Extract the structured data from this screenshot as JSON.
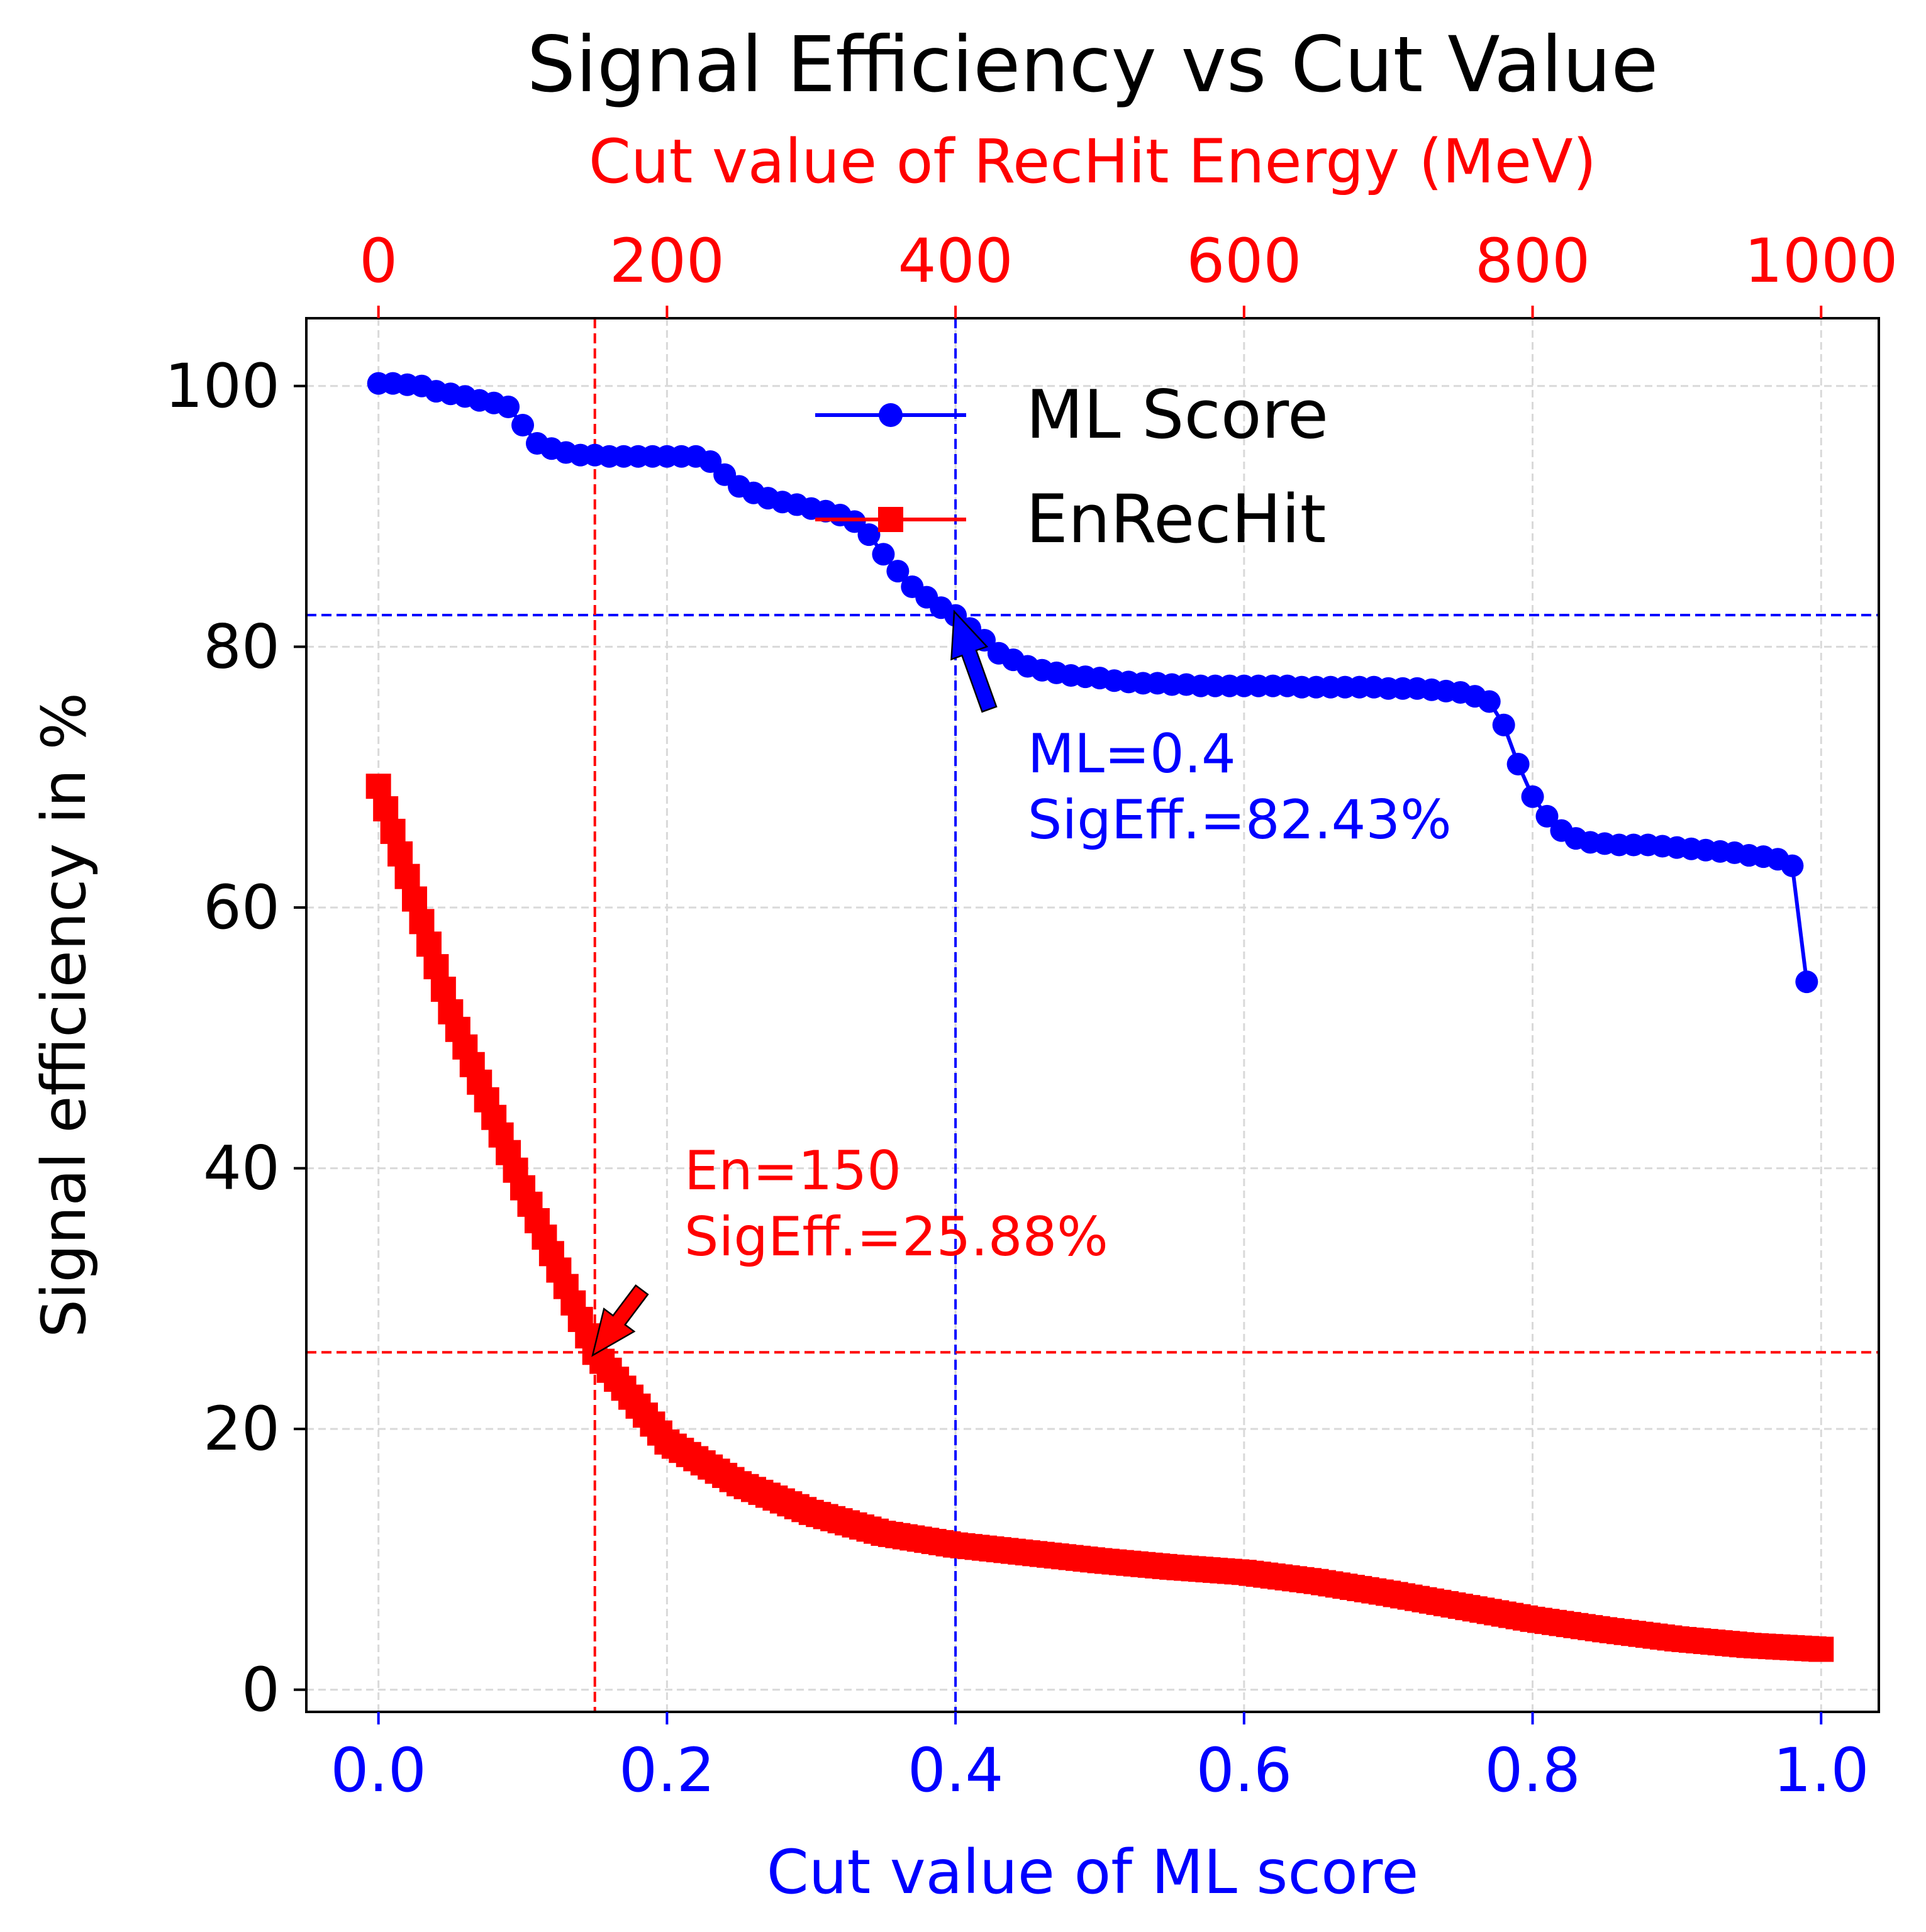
{
  "chart_data": {
    "type": "line",
    "title": "Signal Efficiency vs Cut Value",
    "xlabel": "Cut value of ML score",
    "xlabel_color": "#0000ff",
    "x_ticks": [
      "0.0",
      "0.2",
      "0.4",
      "0.6",
      "0.8",
      "1.0"
    ],
    "xlim": [
      -0.05,
      1.04
    ],
    "x2label": "Cut value of RecHit Energy (MeV)",
    "x2label_color": "#ff0000",
    "x2_ticks": [
      "0",
      "200",
      "400",
      "600",
      "800",
      "1000"
    ],
    "x2lim": [
      -50,
      1040
    ],
    "ylabel": "Signal efficiency in %",
    "y_ticks": [
      "0",
      "20",
      "40",
      "60",
      "80",
      "100"
    ],
    "ylim": [
      -1.7,
      105.2
    ],
    "grid": true,
    "legend_position": "top-center",
    "series": [
      {
        "name": "ML Score",
        "color": "#0000ff",
        "marker": "circle",
        "axis": "bottom",
        "x": [
          0.0,
          0.01,
          0.02,
          0.03,
          0.04,
          0.05,
          0.06,
          0.07,
          0.08,
          0.09,
          0.1,
          0.11,
          0.12,
          0.13,
          0.14,
          0.15,
          0.16,
          0.17,
          0.18,
          0.19,
          0.2,
          0.21,
          0.22,
          0.23,
          0.24,
          0.25,
          0.26,
          0.27,
          0.28,
          0.29,
          0.3,
          0.31,
          0.32,
          0.33,
          0.34,
          0.35,
          0.36,
          0.37,
          0.38,
          0.39,
          0.4,
          0.41,
          0.42,
          0.43,
          0.44,
          0.45,
          0.46,
          0.47,
          0.48,
          0.49,
          0.5,
          0.51,
          0.52,
          0.53,
          0.54,
          0.55,
          0.56,
          0.57,
          0.58,
          0.59,
          0.6,
          0.61,
          0.62,
          0.63,
          0.64,
          0.65,
          0.66,
          0.67,
          0.68,
          0.69,
          0.7,
          0.71,
          0.72,
          0.73,
          0.74,
          0.75,
          0.76,
          0.77,
          0.78,
          0.79,
          0.8,
          0.81,
          0.82,
          0.83,
          0.84,
          0.85,
          0.86,
          0.87,
          0.88,
          0.89,
          0.9,
          0.91,
          0.92,
          0.93,
          0.94,
          0.95,
          0.96,
          0.97,
          0.98,
          0.99
        ],
        "y": [
          100.2,
          100.2,
          100.1,
          100.0,
          99.6,
          99.4,
          99.2,
          98.9,
          98.7,
          98.4,
          97.0,
          95.6,
          95.2,
          94.9,
          94.7,
          94.7,
          94.6,
          94.6,
          94.6,
          94.6,
          94.6,
          94.6,
          94.6,
          94.2,
          93.2,
          92.3,
          91.8,
          91.4,
          91.1,
          90.9,
          90.6,
          90.4,
          90.1,
          89.6,
          88.6,
          87.1,
          85.8,
          84.6,
          83.8,
          83.0,
          82.4,
          81.4,
          80.5,
          79.5,
          79.0,
          78.5,
          78.2,
          78.0,
          77.8,
          77.7,
          77.6,
          77.4,
          77.3,
          77.2,
          77.2,
          77.1,
          77.1,
          77.0,
          77.0,
          77.0,
          77.0,
          77.0,
          77.0,
          77.0,
          76.9,
          76.9,
          76.9,
          76.9,
          76.9,
          76.9,
          76.8,
          76.8,
          76.8,
          76.7,
          76.6,
          76.5,
          76.2,
          75.8,
          74.0,
          71.0,
          68.5,
          67.0,
          65.9,
          65.3,
          65.0,
          64.9,
          64.8,
          64.8,
          64.8,
          64.7,
          64.6,
          64.5,
          64.4,
          64.3,
          64.2,
          64.0,
          63.9,
          63.7,
          63.2,
          54.3
        ]
      },
      {
        "name": "EnRecHit",
        "color": "#ff0000",
        "marker": "square",
        "axis": "top",
        "x_start": 0,
        "x_step": 5,
        "y_anchors": [
          [
            0,
            69.3
          ],
          [
            50,
            52.0
          ],
          [
            100,
            38.5
          ],
          [
            150,
            25.88
          ],
          [
            200,
            19.0
          ],
          [
            250,
            15.8
          ],
          [
            300,
            13.6
          ],
          [
            350,
            12.0
          ],
          [
            400,
            11.1
          ],
          [
            450,
            10.5
          ],
          [
            500,
            9.9
          ],
          [
            550,
            9.4
          ],
          [
            600,
            9.0
          ],
          [
            650,
            8.3
          ],
          [
            700,
            7.4
          ],
          [
            750,
            6.4
          ],
          [
            800,
            5.4
          ],
          [
            850,
            4.6
          ],
          [
            900,
            3.9
          ],
          [
            950,
            3.4
          ],
          [
            1000,
            3.1
          ]
        ]
      }
    ],
    "reference_lines": [
      {
        "orientation": "vertical",
        "axis": "bottom",
        "value": 0.4,
        "color": "#0000ff"
      },
      {
        "orientation": "horizontal",
        "value": 82.43,
        "color": "#0000ff"
      },
      {
        "orientation": "vertical",
        "axis": "top",
        "value": 150,
        "color": "#ff0000"
      },
      {
        "orientation": "horizontal",
        "value": 25.88,
        "color": "#ff0000"
      }
    ],
    "annotations": [
      {
        "lines": [
          "ML=0.4",
          "SigEff.=82.43%"
        ],
        "color": "#0000ff",
        "point_x_axis": "bottom",
        "point_x": 0.4,
        "point_y": 82.43,
        "text_x_axis": "bottom",
        "text_x": 0.45,
        "text_y": 67.0
      },
      {
        "lines": [
          "En=150",
          "SigEff.=25.88%"
        ],
        "color": "#ff0000",
        "point_x_axis": "top",
        "point_x": 150,
        "point_y": 25.88,
        "text_x_axis": "top",
        "text_x": 212,
        "text_y": 35.0
      }
    ]
  }
}
